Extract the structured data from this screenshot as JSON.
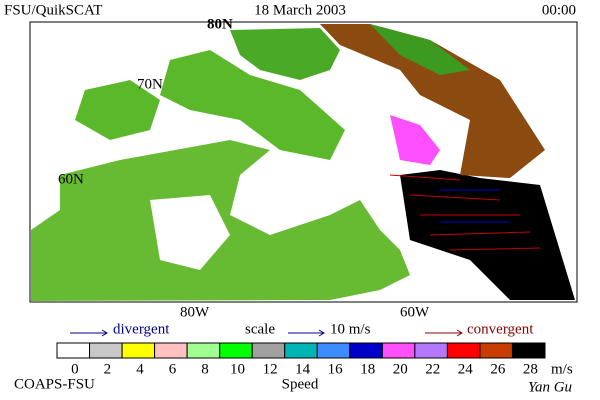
{
  "header": {
    "left": "FSU/QuikSCAT",
    "center": "18 March 2003",
    "right": "00:00"
  },
  "map": {
    "lat_labels": [
      "80N",
      "70N",
      "60N"
    ],
    "lon_labels": [
      "80W",
      "60W"
    ]
  },
  "legend": {
    "divergent": "divergent",
    "scale": "scale",
    "scale_value": "10 m/s",
    "convergent": "convergent"
  },
  "colorbar": {
    "ticks": [
      0,
      2,
      4,
      6,
      8,
      10,
      12,
      14,
      16,
      18,
      20,
      22,
      24,
      26,
      28
    ],
    "unit": "m/s",
    "label": "Speed",
    "colors": [
      "#ffffff",
      "#c8c8c8",
      "#ffff00",
      "#ffc0c0",
      "#a0ff90",
      "#00ff00",
      "#a0a0a0",
      "#00b4b4",
      "#3c8cff",
      "#0000c8",
      "#ff50ff",
      "#b478ff",
      "#ff0000",
      "#c83c00",
      "#000000"
    ]
  },
  "footer": {
    "credit": "COAPS-FSU",
    "author": "Yan Gu"
  }
}
